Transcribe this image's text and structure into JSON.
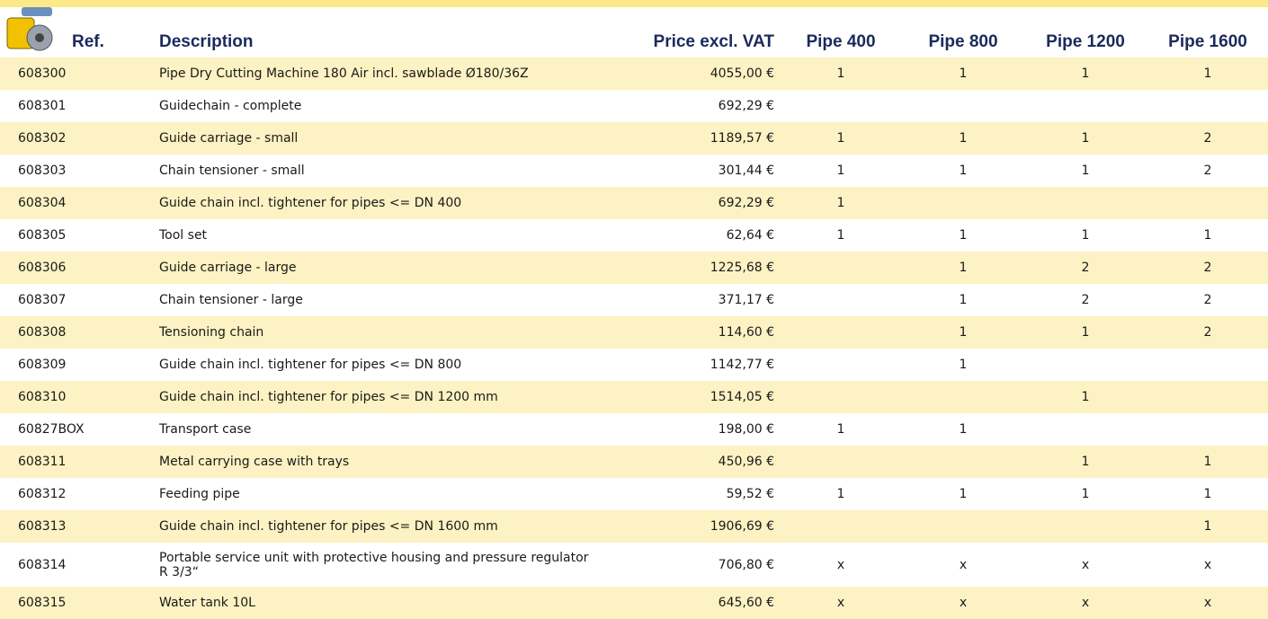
{
  "table": {
    "columns": [
      "Ref.",
      "Description",
      "Price excl. VAT",
      "Pipe 400",
      "Pipe 800",
      "Pipe 1200",
      "Pipe 1600"
    ],
    "rows": [
      [
        "608300",
        "Pipe Dry Cutting Machine 180 Air incl. sawblade Ø180/36Z",
        "4055,00 €",
        "1",
        "1",
        "1",
        "1"
      ],
      [
        "608301",
        "Guidechain - complete",
        "692,29 €",
        null,
        null,
        null,
        null
      ],
      [
        "608302",
        "Guide carriage - small",
        "1189,57 €",
        "1",
        "1",
        "1",
        "2"
      ],
      [
        "608303",
        "Chain tensioner - small",
        "301,44 €",
        "1",
        "1",
        "1",
        "2"
      ],
      [
        "608304",
        "Guide chain incl. tightener for pipes <= DN 400",
        "692,29 €",
        "1",
        null,
        null,
        null
      ],
      [
        "608305",
        "Tool set",
        "62,64 €",
        "1",
        "1",
        "1",
        "1"
      ],
      [
        "608306",
        "Guide carriage - large",
        "1225,68 €",
        null,
        "1",
        "2",
        "2"
      ],
      [
        "608307",
        "Chain tensioner - large",
        "371,17 €",
        null,
        "1",
        "2",
        "2"
      ],
      [
        "608308",
        "Tensioning chain",
        "114,60 €",
        null,
        "1",
        "1",
        "2"
      ],
      [
        "608309",
        "Guide chain incl. tightener for pipes <= DN 800",
        "1142,77 €",
        null,
        "1",
        null,
        null
      ],
      [
        "608310",
        "Guide chain incl. tightener for pipes <=  DN 1200 mm",
        "1514,05 €",
        null,
        null,
        "1",
        null
      ],
      [
        "60827BOX",
        "Transport case",
        "198,00 €",
        "1",
        "1",
        null,
        null
      ],
      [
        "608311",
        "Metal carrying case with trays",
        "450,96 €",
        null,
        null,
        "1",
        "1"
      ],
      [
        "608312",
        "Feeding pipe",
        "59,52 €",
        "1",
        "1",
        "1",
        "1"
      ],
      [
        "608313",
        "Guide chain incl. tightener for pipes <= DN 1600 mm",
        "1906,69 €",
        null,
        null,
        null,
        "1"
      ],
      [
        "608314",
        "Portable service unit with protective housing and pressure regulator R 3/3“",
        "706,80 €",
        "x",
        "x",
        "x",
        "x"
      ],
      [
        "608315",
        "Water tank 10L",
        "645,60 €",
        "x",
        "x",
        "x",
        "x"
      ]
    ]
  }
}
